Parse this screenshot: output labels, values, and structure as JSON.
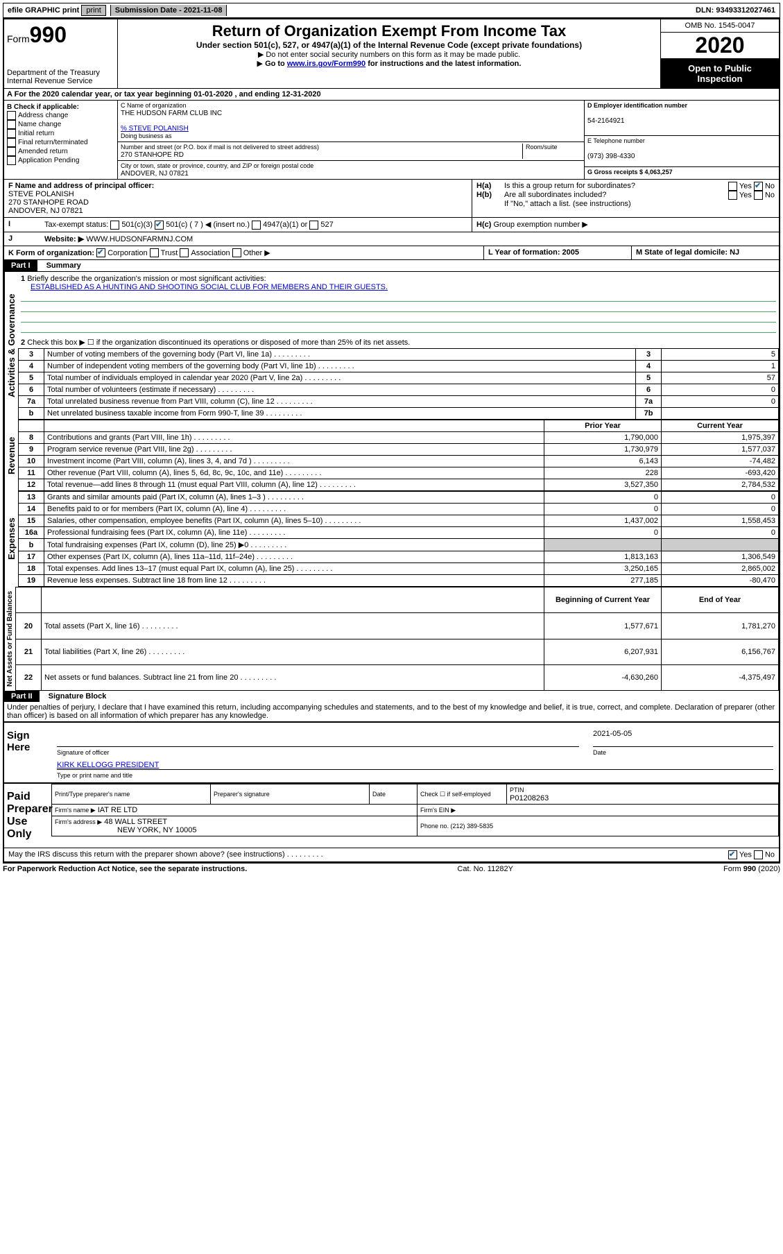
{
  "top": {
    "efile": "efile GRAPHIC print",
    "submission_label": "Submission Date - 2021-11-08",
    "dln_label": "DLN: 93493312027461"
  },
  "header": {
    "form_prefix": "Form",
    "form_num": "990",
    "dept": "Department of the Treasury",
    "irs": "Internal Revenue Service",
    "title": "Return of Organization Exempt From Income Tax",
    "sub": "Under section 501(c), 527, or 4947(a)(1) of the Internal Revenue Code (except private foundations)",
    "instr1": "Do not enter social security numbers on this form as it may be made public.",
    "instr2_a": "Go to ",
    "instr2_link": "www.irs.gov/Form990",
    "instr2_b": " for instructions and the latest information.",
    "omb": "OMB No. 1545-0047",
    "year": "2020",
    "inspect": "Open to Public Inspection"
  },
  "line_a": "For the 2020 calendar year, or tax year beginning 01-01-2020    , and ending 12-31-2020",
  "box_b": {
    "title": "B Check if applicable:",
    "opts": [
      "Address change",
      "Name change",
      "Initial return",
      "Final return/terminated",
      "Amended return",
      "Application Pending"
    ]
  },
  "box_c": {
    "name_lbl": "C Name of organization",
    "name": "THE HUDSON FARM CLUB INC",
    "care_of": "% STEVE POLANISH",
    "dba_lbl": "Doing business as",
    "street_lbl": "Number and street (or P.O. box if mail is not delivered to street address)",
    "room_lbl": "Room/suite",
    "street": "270 STANHOPE RD",
    "city_lbl": "City or town, state or province, country, and ZIP or foreign postal code",
    "city": "ANDOVER, NJ  07821"
  },
  "box_d": {
    "lbl": "D Employer identification number",
    "val": "54-2164921"
  },
  "box_e": {
    "lbl": "E Telephone number",
    "val": "(973) 398-4330"
  },
  "box_g": {
    "lbl": "G Gross receipts $ 4,063,257"
  },
  "box_f": {
    "lbl": "F Name and address of principal officer:",
    "name": "STEVE POLANISH",
    "street": "270 STANHOPE ROAD",
    "city": "ANDOVER, NJ  07821"
  },
  "box_h": {
    "a": "Is this a group return for subordinates?",
    "b": "Are all subordinates included?",
    "b_note": "If \"No,\" attach a list. (see instructions)",
    "c": "Group exemption number ▶"
  },
  "tax_status": {
    "lbl": "Tax-exempt status:",
    "opts": [
      "501(c)(3)",
      "501(c) ( 7 ) ◀ (insert no.)",
      "4947(a)(1) or",
      "527"
    ]
  },
  "website": {
    "lbl": "Website: ▶",
    "val": "WWW.HUDSONFARMNJ.COM"
  },
  "box_k": {
    "lbl": "K Form of organization:",
    "opts": [
      "Corporation",
      "Trust",
      "Association",
      "Other ▶"
    ]
  },
  "box_l": {
    "lbl": "L Year of formation: 2005"
  },
  "box_m": {
    "lbl": "M State of legal domicile: NJ"
  },
  "part1": {
    "hdr": "Part I",
    "title": "Summary",
    "q1_lbl": "Briefly describe the organization's mission or most significant activities:",
    "q1_val": "ESTABLISHED AS A HUNTING AND SHOOTING SOCIAL CLUB FOR MEMBERS AND THEIR GUESTS.",
    "q2": "Check this box ▶ ☐  if the organization discontinued its operations or disposed of more than 25% of its net assets.",
    "sections": {
      "gov": "Activities & Governance",
      "rev": "Revenue",
      "exp": "Expenses",
      "net": "Net Assets or Fund Balances"
    },
    "rows_gov": [
      {
        "n": "3",
        "t": "Number of voting members of the governing body (Part VI, line 1a)",
        "b": "3",
        "v": "5"
      },
      {
        "n": "4",
        "t": "Number of independent voting members of the governing body (Part VI, line 1b)",
        "b": "4",
        "v": "1"
      },
      {
        "n": "5",
        "t": "Total number of individuals employed in calendar year 2020 (Part V, line 2a)",
        "b": "5",
        "v": "57"
      },
      {
        "n": "6",
        "t": "Total number of volunteers (estimate if necessary)",
        "b": "6",
        "v": "0"
      },
      {
        "n": "7a",
        "t": "Total unrelated business revenue from Part VIII, column (C), line 12",
        "b": "7a",
        "v": "0"
      },
      {
        "n": "b",
        "t": "Net unrelated business taxable income from Form 990-T, line 39",
        "b": "7b",
        "v": ""
      }
    ],
    "col_hdr_prior": "Prior Year",
    "col_hdr_curr": "Current Year",
    "rows_rev": [
      {
        "n": "8",
        "t": "Contributions and grants (Part VIII, line 1h)",
        "p": "1,790,000",
        "c": "1,975,397"
      },
      {
        "n": "9",
        "t": "Program service revenue (Part VIII, line 2g)",
        "p": "1,730,979",
        "c": "1,577,037"
      },
      {
        "n": "10",
        "t": "Investment income (Part VIII, column (A), lines 3, 4, and 7d )",
        "p": "6,143",
        "c": "-74,482"
      },
      {
        "n": "11",
        "t": "Other revenue (Part VIII, column (A), lines 5, 6d, 8c, 9c, 10c, and 11e)",
        "p": "228",
        "c": "-693,420"
      },
      {
        "n": "12",
        "t": "Total revenue—add lines 8 through 11 (must equal Part VIII, column (A), line 12)",
        "p": "3,527,350",
        "c": "2,784,532"
      }
    ],
    "rows_exp": [
      {
        "n": "13",
        "t": "Grants and similar amounts paid (Part IX, column (A), lines 1–3 )",
        "p": "0",
        "c": "0"
      },
      {
        "n": "14",
        "t": "Benefits paid to or for members (Part IX, column (A), line 4)",
        "p": "0",
        "c": "0"
      },
      {
        "n": "15",
        "t": "Salaries, other compensation, employee benefits (Part IX, column (A), lines 5–10)",
        "p": "1,437,002",
        "c": "1,558,453"
      },
      {
        "n": "16a",
        "t": "Professional fundraising fees (Part IX, column (A), line 11e)",
        "p": "0",
        "c": "0"
      },
      {
        "n": "b",
        "t": "Total fundraising expenses (Part IX, column (D), line 25) ▶0",
        "p": "",
        "c": ""
      },
      {
        "n": "17",
        "t": "Other expenses (Part IX, column (A), lines 11a–11d, 11f–24e)",
        "p": "1,813,163",
        "c": "1,306,549"
      },
      {
        "n": "18",
        "t": "Total expenses. Add lines 13–17 (must equal Part IX, column (A), line 25)",
        "p": "3,250,165",
        "c": "2,865,002"
      },
      {
        "n": "19",
        "t": "Revenue less expenses. Subtract line 18 from line 12",
        "p": "277,185",
        "c": "-80,470"
      }
    ],
    "col_hdr_begin": "Beginning of Current Year",
    "col_hdr_end": "End of Year",
    "rows_net": [
      {
        "n": "20",
        "t": "Total assets (Part X, line 16)",
        "p": "1,577,671",
        "c": "1,781,270"
      },
      {
        "n": "21",
        "t": "Total liabilities (Part X, line 26)",
        "p": "6,207,931",
        "c": "6,156,767"
      },
      {
        "n": "22",
        "t": "Net assets or fund balances. Subtract line 21 from line 20",
        "p": "-4,630,260",
        "c": "-4,375,497"
      }
    ]
  },
  "part2": {
    "hdr": "Part II",
    "title": "Signature Block",
    "decl": "Under penalties of perjury, I declare that I have examined this return, including accompanying schedules and statements, and to the best of my knowledge and belief, it is true, correct, and complete. Declaration of preparer (other than officer) is based on all information of which preparer has any knowledge."
  },
  "sign": {
    "here": "Sign Here",
    "sig_lbl": "Signature of officer",
    "date_lbl": "Date",
    "date_val": "2021-05-05",
    "name": "KIRK KELLOGG PRESIDENT",
    "name_lbl": "Type or print name and title"
  },
  "preparer": {
    "here": "Paid Preparer Use Only",
    "print_lbl": "Print/Type preparer's name",
    "sig_lbl": "Preparer's signature",
    "date_lbl": "Date",
    "check_lbl": "Check ☐ if self-employed",
    "ptin_lbl": "PTIN",
    "ptin": "P01208263",
    "firm_name_lbl": "Firm's name    ▶",
    "firm_name": "IAT RE LTD",
    "firm_ein_lbl": "Firm's EIN ▶",
    "firm_addr_lbl": "Firm's address ▶",
    "firm_addr1": "48 WALL STREET",
    "firm_addr2": "NEW YORK, NY  10005",
    "phone_lbl": "Phone no. (212) 389-5835"
  },
  "discuss": "May the IRS discuss this return with the preparer shown above? (see instructions)",
  "footer": {
    "pra": "For Paperwork Reduction Act Notice, see the separate instructions.",
    "cat": "Cat. No. 11282Y",
    "form": "Form 990 (2020)"
  },
  "yesno": {
    "yes": "Yes",
    "no": "No"
  }
}
